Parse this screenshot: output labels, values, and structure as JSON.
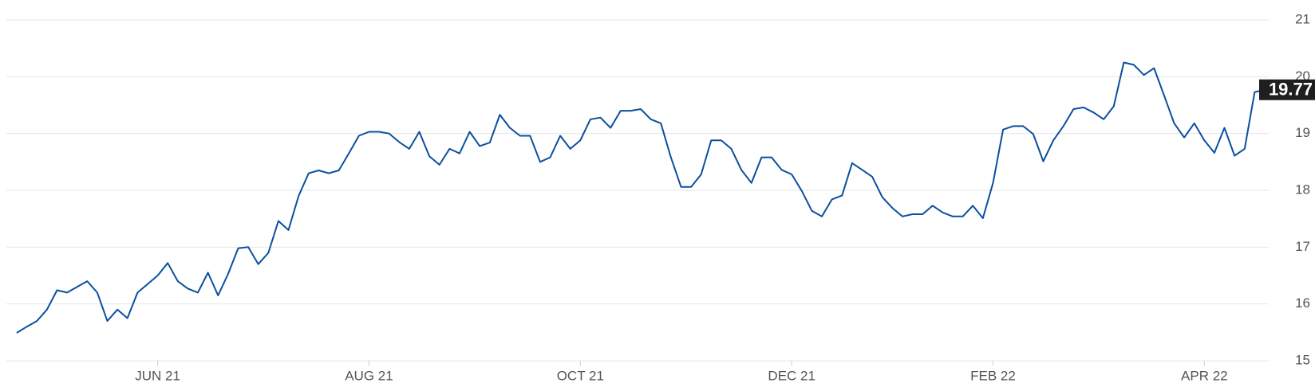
{
  "chart_data": {
    "type": "line",
    "categories": [
      null,
      null,
      null,
      null,
      null,
      null,
      null,
      null,
      null,
      null,
      null,
      null,
      null,
      null,
      "JUN 21",
      null,
      null,
      null,
      null,
      null,
      null,
      null,
      null,
      null,
      null,
      null,
      null,
      null,
      null,
      null,
      null,
      null,
      null,
      null,
      null,
      "AUG 21",
      null,
      null,
      null,
      null,
      null,
      null,
      null,
      null,
      null,
      null,
      null,
      null,
      null,
      null,
      null,
      null,
      null,
      null,
      null,
      null,
      "OCT 21",
      null,
      null,
      null,
      null,
      null,
      null,
      null,
      null,
      null,
      null,
      null,
      null,
      null,
      null,
      null,
      null,
      null,
      null,
      null,
      null,
      "DEC 21",
      null,
      null,
      null,
      null,
      null,
      null,
      null,
      null,
      null,
      null,
      null,
      null,
      null,
      null,
      null,
      null,
      null,
      null,
      null,
      "FEB 22",
      null,
      null,
      null,
      null,
      null,
      null,
      null,
      null,
      null,
      null,
      null,
      null,
      null,
      null,
      null,
      null,
      null,
      null,
      null,
      null,
      "APR 22",
      null,
      null,
      null,
      null,
      null,
      null
    ],
    "series": [
      {
        "color": "#0b4f9e",
        "values": [
          15.49,
          15.6,
          15.7,
          15.9,
          16.24,
          16.2,
          16.3,
          16.4,
          16.2,
          15.7,
          15.9,
          15.75,
          16.2,
          16.35,
          16.5,
          16.72,
          16.4,
          16.27,
          16.2,
          16.55,
          16.15,
          16.53,
          16.98,
          17.0,
          16.7,
          16.9,
          17.46,
          17.3,
          17.9,
          18.3,
          18.35,
          18.3,
          18.35,
          18.65,
          18.96,
          19.03,
          19.03,
          19.0,
          18.85,
          18.73,
          19.03,
          18.6,
          18.45,
          18.73,
          18.65,
          19.03,
          18.78,
          18.84,
          19.33,
          19.1,
          18.96,
          18.96,
          18.5,
          18.58,
          18.96,
          18.73,
          18.88,
          19.25,
          19.28,
          19.1,
          19.4,
          19.4,
          19.43,
          19.25,
          19.18,
          18.58,
          18.06,
          18.06,
          18.28,
          18.88,
          18.88,
          18.73,
          18.36,
          18.13,
          18.58,
          18.58,
          18.36,
          18.28,
          17.99,
          17.64,
          17.54,
          17.84,
          17.91,
          18.48,
          18.36,
          18.24,
          17.88,
          17.69,
          17.54,
          17.58,
          17.58,
          17.73,
          17.61,
          17.54,
          17.54,
          17.73,
          17.51,
          18.13,
          19.07,
          19.13,
          19.13,
          18.99,
          18.51,
          18.88,
          19.13,
          19.43,
          19.46,
          19.37,
          19.25,
          19.48,
          20.25,
          20.21,
          20.03,
          20.15,
          19.67,
          19.18,
          18.93,
          19.18,
          18.88,
          18.66,
          19.1,
          18.61,
          18.73,
          19.73,
          19.77
        ]
      }
    ],
    "ylim": [
      15,
      21
    ],
    "yticks": [
      15,
      16,
      17,
      18,
      19,
      20,
      21
    ],
    "grid": true
  }
}
